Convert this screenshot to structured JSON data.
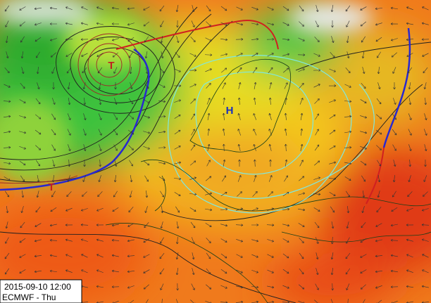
{
  "timestamp": "2015-09-10 12:00",
  "model": "ECMWF - Thu",
  "highs": [
    "H"
  ],
  "lows": [
    "T",
    "T"
  ]
}
